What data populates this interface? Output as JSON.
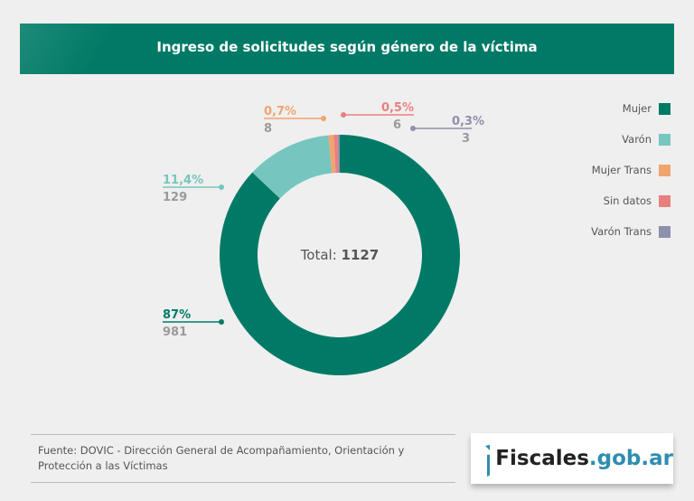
{
  "header": {
    "title": "Ingreso de solicitudes según género de la víctima"
  },
  "chart_data": {
    "type": "pie",
    "donut": true,
    "title": "Ingreso de solicitudes según género de la víctima",
    "center_label": "Total:",
    "total": "1127",
    "categories": [
      "Mujer",
      "Varón",
      "Mujer Trans",
      "Sin datos",
      "Varón Trans"
    ],
    "values": [
      981,
      129,
      8,
      6,
      3
    ],
    "percent_labels": [
      "87%",
      "11,4%",
      "0,7%",
      "0,5%",
      "0,3%"
    ],
    "count_labels": [
      "981",
      "129",
      "8",
      "6",
      "3"
    ],
    "colors": [
      "#007a66",
      "#76c6bf",
      "#f2a46e",
      "#e8807f",
      "#8f8fae"
    ],
    "legend": "right"
  },
  "footer": {
    "source": "Fuente: DOVIC - Dirección General de Acompañamiento, Orientación y Protección a las Víctimas",
    "logo_main": "Fiscales",
    "logo_domain": ".gob.ar"
  }
}
